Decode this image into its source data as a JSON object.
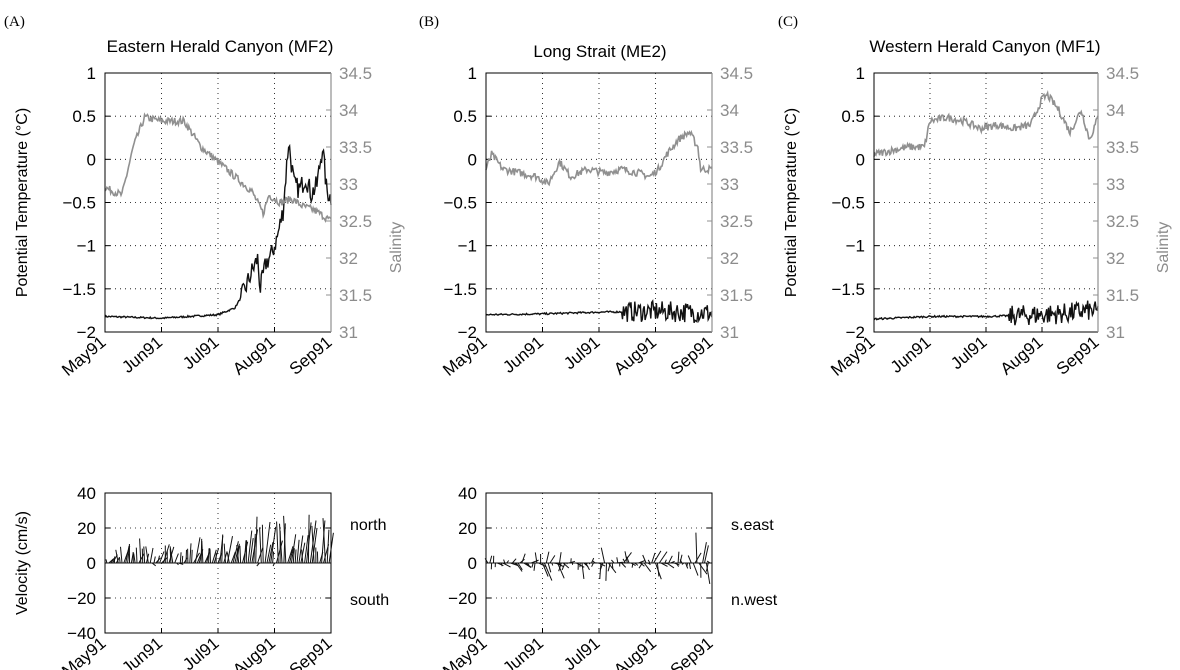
{
  "colors": {
    "temperature": "#111111",
    "salinity": "#909090",
    "velocity": "#111111"
  },
  "chart_data": [
    {
      "id": "A",
      "panel_label": "(A)",
      "type": "line",
      "title": "Eastern Herald Canyon (MF2)",
      "ylabel": "Potential Temperature (°C)",
      "y2label": "Salinity",
      "x_ticks": [
        "May91",
        "Jun91",
        "Jul91",
        "Aug91",
        "Sep91"
      ],
      "ylim": [
        -2,
        1
      ],
      "y2lim": [
        31,
        34.5
      ],
      "yticks": [
        "1",
        "0.5",
        "0",
        "−0.5",
        "−1",
        "−1.5",
        "−2"
      ],
      "y2ticks": [
        "34.5",
        "34",
        "33.5",
        "33",
        "32.5",
        "32",
        "31.5",
        "31"
      ],
      "grid": true,
      "series": [
        {
          "axis": "temperature",
          "x_month": [
            0,
            1,
            2,
            2.3,
            2.45,
            2.6,
            2.7,
            2.75,
            2.85,
            2.95,
            3.05,
            3.15,
            3.25,
            3.35,
            3.45,
            3.55,
            3.65,
            3.75,
            3.85,
            3.92,
            4
          ],
          "values": [
            -1.82,
            -1.84,
            -1.8,
            -1.72,
            -1.55,
            -1.3,
            -1.15,
            -1.5,
            -1.2,
            -1.1,
            -0.9,
            -0.6,
            0.2,
            -0.3,
            -0.35,
            -0.2,
            -0.4,
            -0.3,
            0.15,
            -0.35,
            -0.45
          ]
        },
        {
          "axis": "salinity",
          "x_month": [
            0,
            0.3,
            0.5,
            0.7,
            1.0,
            1.4,
            1.7,
            2.0,
            2.3,
            2.6,
            2.8,
            2.9,
            3.1,
            3.3,
            3.5,
            3.7,
            3.9,
            4
          ],
          "values": [
            32.95,
            32.85,
            33.5,
            33.9,
            33.85,
            33.85,
            33.5,
            33.3,
            33.1,
            32.9,
            32.6,
            32.85,
            32.75,
            32.8,
            32.7,
            32.65,
            32.55,
            32.5
          ]
        }
      ]
    },
    {
      "id": "B",
      "panel_label": "(B)",
      "type": "line",
      "title": "Long Strait (ME2)",
      "ylabel": "",
      "y2label": "",
      "x_ticks": [
        "May91",
        "Jun91",
        "Jul91",
        "Aug91",
        "Sep91"
      ],
      "ylim": [
        -2,
        1
      ],
      "y2lim": [
        31,
        34.5
      ],
      "yticks": [
        "1",
        "0.5",
        "0",
        "−0.5",
        "−1",
        "−1.5",
        "−2"
      ],
      "y2ticks": [
        "34.5",
        "34",
        "33.5",
        "33",
        "32.5",
        "32",
        "31.5",
        "31"
      ],
      "grid": true,
      "series": [
        {
          "axis": "temperature",
          "x_month": [
            0,
            1,
            2,
            3,
            4
          ],
          "values": [
            -1.8,
            -1.79,
            -1.77,
            -1.76,
            -1.78
          ]
        },
        {
          "axis": "salinity",
          "x_month": [
            0,
            0.1,
            0.3,
            0.6,
            0.9,
            1.1,
            1.3,
            1.5,
            1.8,
            2.1,
            2.4,
            2.7,
            2.9,
            3.05,
            3.2,
            3.4,
            3.6,
            3.75,
            3.8,
            4
          ],
          "values": [
            33.2,
            33.4,
            33.2,
            33.15,
            33.1,
            33.0,
            33.3,
            33.1,
            33.2,
            33.15,
            33.2,
            33.15,
            33.1,
            33.2,
            33.4,
            33.6,
            33.7,
            33.5,
            33.2,
            33.2
          ]
        }
      ]
    },
    {
      "id": "C",
      "panel_label": "(C)",
      "type": "line",
      "title": "Western Herald Canyon (MF1)",
      "ylabel": "Potential Temperature (°C)",
      "y2label": "Salinity",
      "x_ticks": [
        "May91",
        "Jun91",
        "Jul91",
        "Aug91",
        "Sep91"
      ],
      "ylim": [
        -2,
        1
      ],
      "y2lim": [
        31,
        34.5
      ],
      "yticks": [
        "1",
        "0.5",
        "0",
        "−0.5",
        "−1",
        "−1.5",
        "−2"
      ],
      "y2ticks": [
        "34.5",
        "34",
        "33.5",
        "33",
        "32.5",
        "32",
        "31.5",
        "31"
      ],
      "grid": true,
      "series": [
        {
          "axis": "temperature",
          "x_month": [
            0,
            1,
            2,
            3,
            3.5,
            3.8,
            4
          ],
          "values": [
            -1.85,
            -1.82,
            -1.82,
            -1.8,
            -1.78,
            -1.75,
            -1.77
          ]
        },
        {
          "axis": "salinity",
          "x_month": [
            0,
            0.3,
            0.6,
            0.9,
            1.0,
            1.3,
            1.6,
            1.9,
            2.2,
            2.5,
            2.8,
            3.0,
            3.1,
            3.3,
            3.5,
            3.7,
            3.85,
            4
          ],
          "values": [
            33.4,
            33.45,
            33.5,
            33.5,
            33.85,
            33.9,
            33.85,
            33.75,
            33.8,
            33.75,
            33.8,
            34.15,
            34.2,
            34.0,
            33.7,
            34.0,
            33.6,
            33.9
          ]
        }
      ]
    },
    {
      "id": "A-velocity",
      "type": "bar",
      "ylabel": "Velocity (cm/s)",
      "x_ticks": [
        "May91",
        "Jun91",
        "Jul91",
        "Aug91",
        "Sep91"
      ],
      "ylim": [
        -40,
        40
      ],
      "yticks": [
        "40",
        "20",
        "0",
        "−20",
        "−40"
      ],
      "positive_label": "north",
      "negative_label": "south",
      "grid": true,
      "envelope": {
        "x_month": [
          0,
          0.3,
          0.6,
          0.9,
          1.1,
          1.3,
          1.6,
          1.9,
          2.1,
          2.4,
          2.6,
          2.8,
          3.0,
          3.2,
          3.4,
          3.6,
          3.8,
          4
        ],
        "values": [
          5,
          10,
          15,
          8,
          14,
          6,
          16,
          10,
          20,
          10,
          25,
          32,
          22,
          28,
          20,
          30,
          25,
          28
        ]
      }
    },
    {
      "id": "B-velocity",
      "type": "bar",
      "ylabel": "",
      "x_ticks": [
        "May91",
        "Jun91",
        "Jul91",
        "Aug91",
        "Sep91"
      ],
      "ylim": [
        -40,
        40
      ],
      "yticks": [
        "40",
        "20",
        "0",
        "−20",
        "−40"
      ],
      "positive_label": "s.east",
      "negative_label": "n.west",
      "grid": true,
      "envelope": {
        "x_month": [
          0,
          0.3,
          0.6,
          0.9,
          1.1,
          1.3,
          1.5,
          1.7,
          1.9,
          2.1,
          2.4,
          2.6,
          2.8,
          3.0,
          3.2,
          3.4,
          3.6,
          3.75,
          3.9,
          4
        ],
        "values": [
          -15,
          5,
          -10,
          8,
          18,
          -15,
          5,
          -10,
          8,
          -18,
          10,
          6,
          -10,
          15,
          -8,
          8,
          -10,
          -25,
          -15,
          5
        ]
      }
    }
  ]
}
